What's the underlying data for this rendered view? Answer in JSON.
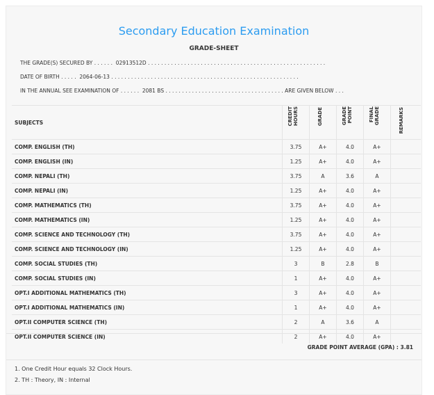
{
  "title": "Secondary Education Examination",
  "subtitle": "GRADE-SHEET",
  "info_lines": [
    "THE GRADE(S) SECURED BY . . . . . .  02913512D . . . . . . . . . . . . . . . . . . . . . . . . . . . . . . . . . . . . . . . . . . . . . . . . . . . . . .",
    "DATE OF BIRTH . . . . .  2064-06-13 . . . . . . . . . . . . . . . . . . . . . . . . . . . . . . . . . . . . . . . . . . . . . . . . . . . . . . . . .",
    "IN THE ANNUAL SEE EXAMINATION OF . . . . . .  2081 BS . . . . . . . . . . . . . . . . . . . . . . . . . . . . . . . . . . . . ARE GIVEN BELOW . . ."
  ],
  "headers": {
    "subjects": "SUBJECTS",
    "credit": "CREDIT\nHOURS",
    "grade": "GRADE",
    "point": "GRADE\nPOINT",
    "final": "FINAL\nGRADE",
    "remarks": "REMARKS"
  },
  "rows": [
    {
      "subject": "COMP. ENGLISH (TH)",
      "credit": "3.75",
      "grade": "A+",
      "point": "4.0",
      "final": "A+"
    },
    {
      "subject": "COMP. ENGLISH (IN)",
      "credit": "1.25",
      "grade": "A+",
      "point": "4.0",
      "final": "A+"
    },
    {
      "subject": "COMP. NEPALI (TH)",
      "credit": "3.75",
      "grade": "A",
      "point": "3.6",
      "final": "A"
    },
    {
      "subject": "COMP. NEPALI (IN)",
      "credit": "1.25",
      "grade": "A+",
      "point": "4.0",
      "final": "A+"
    },
    {
      "subject": "COMP. MATHEMATICS (TH)",
      "credit": "3.75",
      "grade": "A+",
      "point": "4.0",
      "final": "A+"
    },
    {
      "subject": "COMP. MATHEMATICS (IN)",
      "credit": "1.25",
      "grade": "A+",
      "point": "4.0",
      "final": "A+"
    },
    {
      "subject": "COMP. SCIENCE AND TECHNOLOGY (TH)",
      "credit": "3.75",
      "grade": "A+",
      "point": "4.0",
      "final": "A+"
    },
    {
      "subject": "COMP. SCIENCE AND TECHNOLOGY (IN)",
      "credit": "1.25",
      "grade": "A+",
      "point": "4.0",
      "final": "A+"
    },
    {
      "subject": "COMP. SOCIAL STUDIES (TH)",
      "credit": "3",
      "grade": "B",
      "point": "2.8",
      "final": "B"
    },
    {
      "subject": "COMP. SOCIAL STUDIES (IN)",
      "credit": "1",
      "grade": "A+",
      "point": "4.0",
      "final": "A+"
    },
    {
      "subject": "OPT.I ADDITIONAL MATHEMATICS (TH)",
      "credit": "3",
      "grade": "A+",
      "point": "4.0",
      "final": "A+"
    },
    {
      "subject": "OPT.I ADDITIONAL MATHEMATICS (IN)",
      "credit": "1",
      "grade": "A+",
      "point": "4.0",
      "final": "A+"
    },
    {
      "subject": "OPT.II COMPUTER SCIENCE (TH)",
      "credit": "2",
      "grade": "A",
      "point": "3.6",
      "final": "A"
    },
    {
      "subject": "OPT.II COMPUTER SCIENCE (IN)",
      "credit": "2",
      "grade": "A+",
      "point": "4.0",
      "final": "A+"
    }
  ],
  "gpa": "GRADE POINT AVERAGE (GPA) : 3.81",
  "notes": [
    "1. One Credit Hour equals 32 Clock Hours.",
    "2. TH : Theory, IN : Internal"
  ]
}
